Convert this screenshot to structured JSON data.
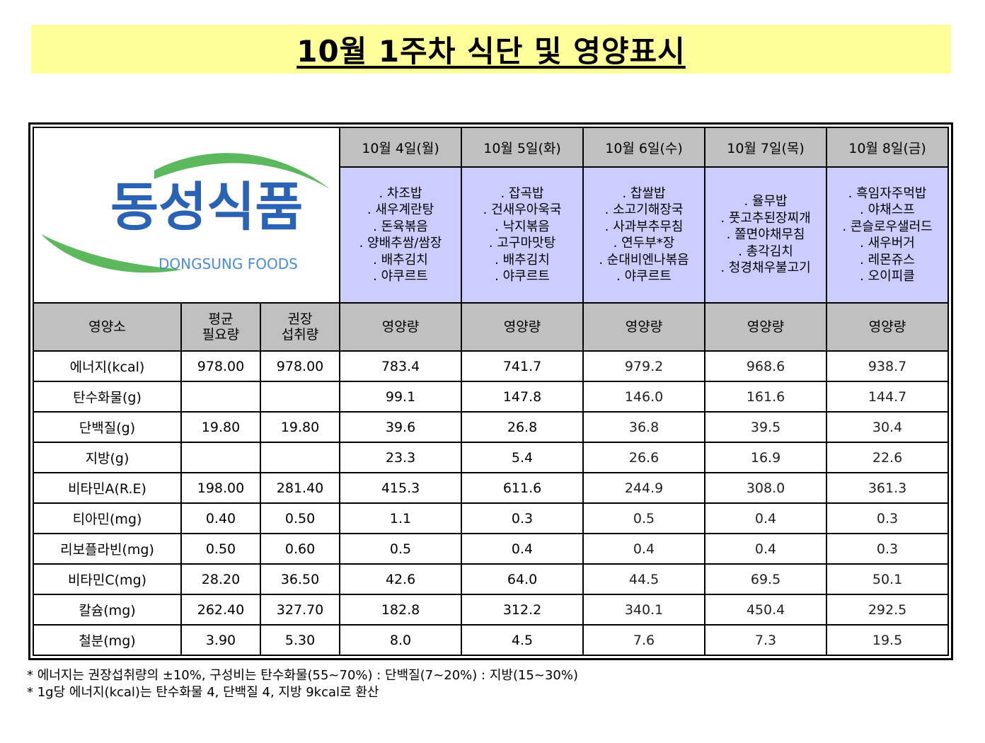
{
  "title": "10월 1주차 식단 및 영양표시",
  "logo": {
    "korean": "동성식품",
    "english": "DONGSUNG FOODS"
  },
  "days": [
    {
      "date": "10월 4일(월)",
      "menu": [
        "차조밥",
        "새우계란탕",
        "돈육볶음",
        "양배추쌈/쌈장",
        "배추김치",
        "야쿠르트"
      ]
    },
    {
      "date": "10월 5일(화)",
      "menu": [
        "잡곡밥",
        "건새우아욱국",
        "낙지볶음",
        "고구마맛탕",
        "배추김치",
        "야쿠르트"
      ]
    },
    {
      "date": "10월 6일(수)",
      "menu": [
        "찹쌀밥",
        "소고기해장국",
        "사과부추무침",
        "연두부*장",
        "순대비엔나볶음",
        "야쿠르트"
      ]
    },
    {
      "date": "10월 7일(목)",
      "menu": [
        "율무밥",
        "풋고추된장찌개",
        "쫄면야채무침",
        "총각김치",
        "청경채우불고기"
      ]
    },
    {
      "date": "10월 8일(금)",
      "menu": [
        "흑임자주먹밥",
        "야채스프",
        "콘슬로우샐러드",
        "새우버거",
        "레몬쥬스",
        "오이피클"
      ]
    }
  ],
  "headers": {
    "nutrient": "영양소",
    "avg_line1": "평균",
    "avg_line2": "필요량",
    "rec_line1": "권장",
    "rec_line2": "섭취량",
    "amount": "영양량"
  },
  "rows": [
    {
      "name": "에너지(kcal)",
      "avg": "978.00",
      "rec": "978.00",
      "values": [
        "783.4",
        "741.7",
        "979.2",
        "968.6",
        "938.7"
      ]
    },
    {
      "name": "탄수화물(g)",
      "avg": "",
      "rec": "",
      "values": [
        "99.1",
        "147.8",
        "146.0",
        "161.6",
        "144.7"
      ]
    },
    {
      "name": "단백질(g)",
      "avg": "19.80",
      "rec": "19.80",
      "values": [
        "39.6",
        "26.8",
        "36.8",
        "39.5",
        "30.4"
      ]
    },
    {
      "name": "지방(g)",
      "avg": "",
      "rec": "",
      "values": [
        "23.3",
        "5.4",
        "26.6",
        "16.9",
        "22.6"
      ]
    },
    {
      "name": "비타민A(R.E)",
      "avg": "198.00",
      "rec": "281.40",
      "values": [
        "415.3",
        "611.6",
        "244.9",
        "308.0",
        "361.3"
      ]
    },
    {
      "name": "티아민(mg)",
      "avg": "0.40",
      "rec": "0.50",
      "values": [
        "1.1",
        "0.3",
        "0.5",
        "0.4",
        "0.3"
      ]
    },
    {
      "name": "리보플라빈(mg)",
      "avg": "0.50",
      "rec": "0.60",
      "values": [
        "0.5",
        "0.4",
        "0.4",
        "0.4",
        "0.3"
      ]
    },
    {
      "name": "비타민C(mg)",
      "avg": "28.20",
      "rec": "36.50",
      "values": [
        "42.6",
        "64.0",
        "44.5",
        "69.5",
        "50.1"
      ]
    },
    {
      "name": "칼슘(mg)",
      "avg": "262.40",
      "rec": "327.70",
      "values": [
        "182.8",
        "312.2",
        "340.1",
        "450.4",
        "292.5"
      ]
    },
    {
      "name": "철분(mg)",
      "avg": "3.90",
      "rec": "5.30",
      "values": [
        "8.0",
        "4.5",
        "7.6",
        "7.3",
        "19.5"
      ]
    }
  ],
  "footnotes": [
    "* 에너지는 권장섭취량의 ±10%, 구성비는 탄수화물(55~70%) : 단백질(7~20%) : 지방(15~30%)",
    "* 1g당 에너지(kcal)는 탄수화물 4, 단백질 4, 지방 9kcal로 환산"
  ],
  "colors": {
    "title_bg": "#ffff99",
    "menu_bg": "#ccccff",
    "header_bg": "#c0c0c0",
    "logo_blue": "#2a62b5",
    "logo_green": "#5cb85c"
  }
}
